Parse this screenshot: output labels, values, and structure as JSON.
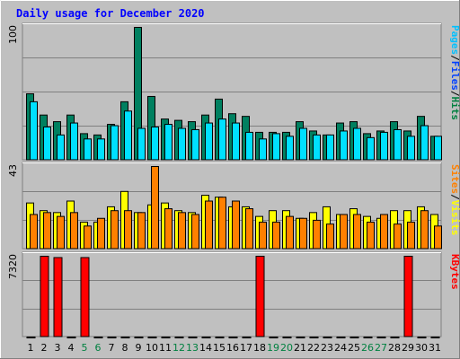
{
  "chart_data": {
    "type": "bar",
    "title": "Daily usage for December 2020",
    "categories": [
      "1",
      "2",
      "3",
      "4",
      "5",
      "6",
      "7",
      "8",
      "9",
      "10",
      "11",
      "12",
      "13",
      "14",
      "15",
      "16",
      "17",
      "18",
      "19",
      "20",
      "21",
      "22",
      "23",
      "24",
      "25",
      "26",
      "27",
      "28",
      "29",
      "30",
      "31"
    ],
    "weekend_days": [
      "5",
      "6",
      "12",
      "13",
      "19",
      "20",
      "26",
      "27"
    ],
    "panels": [
      {
        "id": "hits",
        "ymax_label": "100",
        "ylim": [
          0,
          100
        ],
        "side_label": [
          {
            "text": "Pages",
            "color": "#00c0ff"
          },
          {
            "text": "/",
            "color": "#000000"
          },
          {
            "text": "Files",
            "color": "#0040ff"
          },
          {
            "text": "/",
            "color": "#000000"
          },
          {
            "text": "Hits",
            "color": "#008040"
          }
        ],
        "series": [
          {
            "name": "Hits",
            "color": "#008060",
            "values": [
              50,
              34,
              29,
              34,
              20,
              19,
              27,
              44,
              100,
              48,
              31,
              30,
              29,
              34,
              46,
              35,
              33,
              21,
              21,
              21,
              29,
              22,
              19,
              28,
              29,
              20,
              22,
              29,
              22,
              33,
              18
            ]
          },
          {
            "name": "Pages",
            "color": "#00e0ff",
            "values": [
              44,
              25,
              19,
              28,
              16,
              16,
              26,
              37,
              24,
              25,
              27,
              24,
              23,
              28,
              31,
              28,
              21,
              16,
              20,
              18,
              24,
              19,
              19,
              22,
              24,
              17,
              21,
              23,
              18,
              26,
              18
            ]
          }
        ]
      },
      {
        "id": "visits",
        "ymax_label": "43",
        "ylim": [
          0,
          43
        ],
        "side_label": [
          {
            "text": "Sites",
            "color": "#ff8000"
          },
          {
            "text": "/",
            "color": "#000000"
          },
          {
            "text": "Visits",
            "color": "#ffff00"
          }
        ],
        "series": [
          {
            "name": "Visits",
            "color": "#ffff00",
            "values": [
              24,
              20,
              19,
              25,
              14,
              14,
              22,
              30,
              19,
              23,
              24,
              20,
              19,
              28,
              27,
              22,
              22,
              17,
              20,
              20,
              16,
              19,
              22,
              18,
              21,
              17,
              16,
              20,
              20,
              22,
              18
            ]
          },
          {
            "name": "Sites",
            "color": "#ff8000",
            "values": [
              18,
              19,
              17,
              19,
              12,
              16,
              20,
              20,
              19,
              43,
              21,
              19,
              18,
              25,
              27,
              25,
              21,
              14,
              14,
              17,
              16,
              15,
              13,
              18,
              18,
              14,
              18,
              13,
              14,
              20,
              12
            ]
          }
        ]
      },
      {
        "id": "kbytes",
        "ymax_label": "7320",
        "ylim": [
          0,
          7320
        ],
        "side_label": [
          {
            "text": "KBytes",
            "color": "#ff0000"
          }
        ],
        "series": [
          {
            "name": "KBytes",
            "color": "#ff0000",
            "values": [
              0,
              7320,
              7200,
              0,
              7200,
              0,
              0,
              0,
              0,
              0,
              0,
              0,
              0,
              0,
              0,
              0,
              0,
              7320,
              0,
              0,
              0,
              0,
              0,
              0,
              0,
              0,
              0,
              0,
              7320,
              0,
              0
            ]
          }
        ]
      }
    ],
    "colors": {
      "background": "#c0c0c0",
      "title": "#0000ff",
      "day_label": "#000000",
      "weekend_label": "#008040",
      "bar_outline": "#000000"
    }
  }
}
